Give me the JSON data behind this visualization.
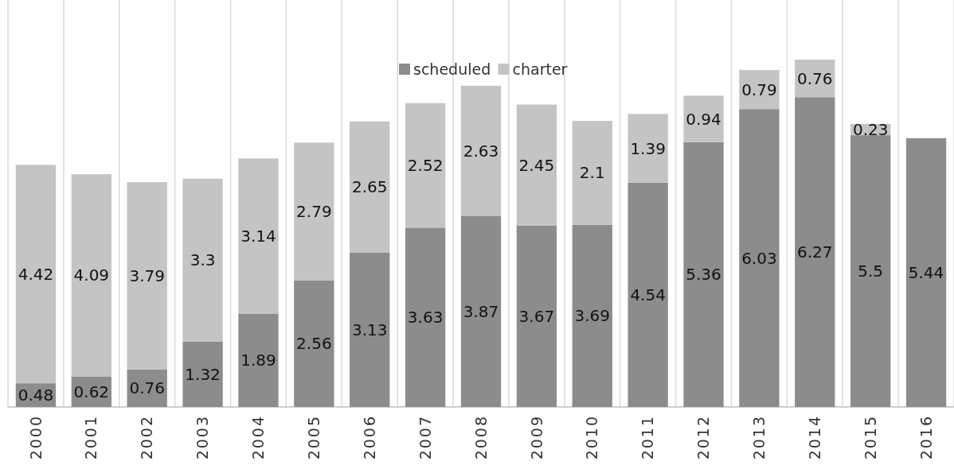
{
  "chart_data": {
    "type": "bar",
    "stacked": true,
    "categories": [
      "2000",
      "2001",
      "2002",
      "2003",
      "2004",
      "2005",
      "2006",
      "2007",
      "2008",
      "2009",
      "2010",
      "2011",
      "2012",
      "2013",
      "2014",
      "2015",
      "2016"
    ],
    "series": [
      {
        "name": "scheduled",
        "color": "#8c8c8c",
        "values": [
          0.48,
          0.62,
          0.76,
          1.32,
          1.89,
          2.56,
          3.13,
          3.63,
          3.87,
          3.67,
          3.69,
          4.54,
          5.36,
          6.03,
          6.27,
          5.5,
          5.44
        ]
      },
      {
        "name": "charter",
        "color": "#c4c4c4",
        "values": [
          4.42,
          4.09,
          3.79,
          3.3,
          3.14,
          2.79,
          2.65,
          2.52,
          2.63,
          2.45,
          2.1,
          1.39,
          0.94,
          0.79,
          0.76,
          0.23,
          null
        ]
      }
    ],
    "data_labels": true,
    "grid": "x",
    "legend": "top"
  }
}
